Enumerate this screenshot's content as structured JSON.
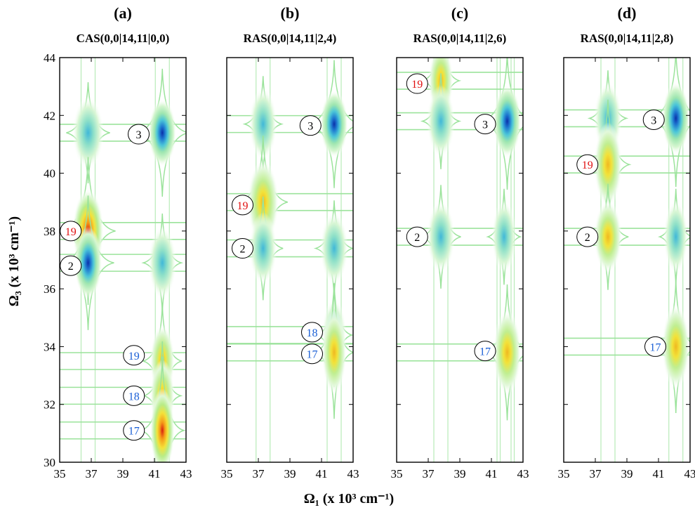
{
  "chart_data": {
    "type": "heatmap",
    "xlabel": "Ω₁ (x 10³ cm⁻¹)",
    "ylabel": "Ω₃ (x 10³ cm⁻¹)",
    "xlim": [
      35,
      43
    ],
    "ylim": [
      30,
      44
    ],
    "xticks": [
      "35",
      "37",
      "39",
      "41",
      "43"
    ],
    "yticks": [
      "30",
      "32",
      "34",
      "36",
      "38",
      "40",
      "42",
      "44"
    ],
    "grid": false,
    "panels": [
      {
        "letter": "(a)",
        "title": "CAS(0,0|14,11|0,0)",
        "peaks": [
          {
            "x": 41.5,
            "y": 41.4,
            "amp": 1.0,
            "sx": 0.25,
            "sy": 0.28
          },
          {
            "x": 36.8,
            "y": 41.4,
            "amp": 0.3,
            "sx": 0.28,
            "sy": 0.3
          },
          {
            "x": 36.8,
            "y": 38.0,
            "amp": 0.8,
            "sx": 0.28,
            "sy": 0.35
          },
          {
            "x": 36.8,
            "y": 36.9,
            "amp": 0.95,
            "sx": 0.25,
            "sy": 0.3
          },
          {
            "x": 41.5,
            "y": 36.9,
            "amp": 0.25,
            "sx": 0.25,
            "sy": 0.3
          },
          {
            "x": 41.5,
            "y": 33.5,
            "amp": 0.55,
            "sx": 0.22,
            "sy": 0.3
          },
          {
            "x": 41.5,
            "y": 32.3,
            "amp": 0.45,
            "sx": 0.22,
            "sy": 0.3
          },
          {
            "x": 41.5,
            "y": 31.1,
            "amp": 0.8,
            "sx": 0.22,
            "sy": 0.35
          }
        ],
        "labels": [
          {
            "text": "3",
            "x": 40.0,
            "y": 41.35,
            "color": "black"
          },
          {
            "text": "19",
            "x": 35.7,
            "y": 38.0,
            "color": "red"
          },
          {
            "text": "2",
            "x": 35.7,
            "y": 36.8,
            "color": "black"
          },
          {
            "text": "19",
            "x": 39.7,
            "y": 33.7,
            "color": "blue"
          },
          {
            "text": "18",
            "x": 39.7,
            "y": 32.3,
            "color": "blue"
          },
          {
            "text": "17",
            "x": 39.7,
            "y": 31.1,
            "color": "blue"
          }
        ]
      },
      {
        "letter": "(b)",
        "title": "RAS(0,0|14,11|2,4)",
        "peaks": [
          {
            "x": 41.8,
            "y": 41.7,
            "amp": 1.0,
            "sx": 0.25,
            "sy": 0.28
          },
          {
            "x": 37.3,
            "y": 41.7,
            "amp": 0.2,
            "sx": 0.25,
            "sy": 0.3
          },
          {
            "x": 37.3,
            "y": 39.0,
            "amp": 0.55,
            "sx": 0.28,
            "sy": 0.35
          },
          {
            "x": 37.3,
            "y": 37.4,
            "amp": 0.35,
            "sx": 0.25,
            "sy": 0.3
          },
          {
            "x": 41.8,
            "y": 37.4,
            "amp": 0.2,
            "sx": 0.25,
            "sy": 0.3
          },
          {
            "x": 41.8,
            "y": 34.4,
            "amp": 0.35,
            "sx": 0.22,
            "sy": 0.3
          },
          {
            "x": 41.8,
            "y": 33.8,
            "amp": 0.55,
            "sx": 0.22,
            "sy": 0.35
          }
        ],
        "labels": [
          {
            "text": "3",
            "x": 40.3,
            "y": 41.65,
            "color": "black"
          },
          {
            "text": "19",
            "x": 36.0,
            "y": 38.9,
            "color": "red"
          },
          {
            "text": "2",
            "x": 36.0,
            "y": 37.4,
            "color": "black"
          },
          {
            "text": "18",
            "x": 40.4,
            "y": 34.5,
            "color": "blue"
          },
          {
            "text": "17",
            "x": 40.4,
            "y": 33.75,
            "color": "blue"
          }
        ]
      },
      {
        "letter": "(c)",
        "title": "RAS(0,0|14,11|2,6)",
        "peaks": [
          {
            "x": 37.8,
            "y": 43.2,
            "amp": 0.45,
            "sx": 0.22,
            "sy": 0.3
          },
          {
            "x": 42.0,
            "y": 41.8,
            "amp": 1.0,
            "sx": 0.25,
            "sy": 0.3
          },
          {
            "x": 37.8,
            "y": 41.8,
            "amp": 0.2,
            "sx": 0.25,
            "sy": 0.3
          },
          {
            "x": 37.8,
            "y": 37.8,
            "amp": 0.35,
            "sx": 0.25,
            "sy": 0.3
          },
          {
            "x": 41.8,
            "y": 37.8,
            "amp": 0.2,
            "sx": 0.22,
            "sy": 0.3
          },
          {
            "x": 42.0,
            "y": 33.8,
            "amp": 0.6,
            "sx": 0.25,
            "sy": 0.35
          }
        ],
        "labels": [
          {
            "text": "19",
            "x": 36.3,
            "y": 43.1,
            "color": "red"
          },
          {
            "text": "3",
            "x": 40.6,
            "y": 41.7,
            "color": "black"
          },
          {
            "text": "2",
            "x": 36.3,
            "y": 37.8,
            "color": "black"
          },
          {
            "text": "17",
            "x": 40.6,
            "y": 33.85,
            "color": "blue"
          }
        ]
      },
      {
        "letter": "(d)",
        "title": "RAS(0,0|14,11|2,8)",
        "peaks": [
          {
            "x": 42.1,
            "y": 41.9,
            "amp": 1.0,
            "sx": 0.25,
            "sy": 0.3
          },
          {
            "x": 37.8,
            "y": 41.9,
            "amp": 0.2,
            "sx": 0.25,
            "sy": 0.3
          },
          {
            "x": 37.8,
            "y": 40.3,
            "amp": 0.5,
            "sx": 0.25,
            "sy": 0.35
          },
          {
            "x": 37.8,
            "y": 37.8,
            "amp": 0.4,
            "sx": 0.25,
            "sy": 0.3
          },
          {
            "x": 42.1,
            "y": 37.8,
            "amp": 0.2,
            "sx": 0.22,
            "sy": 0.3
          },
          {
            "x": 42.1,
            "y": 34.0,
            "amp": 0.55,
            "sx": 0.25,
            "sy": 0.35
          }
        ],
        "labels": [
          {
            "text": "3",
            "x": 40.7,
            "y": 41.85,
            "color": "black"
          },
          {
            "text": "19",
            "x": 36.5,
            "y": 40.3,
            "color": "red"
          },
          {
            "text": "2",
            "x": 36.5,
            "y": 37.8,
            "color": "black"
          },
          {
            "text": "17",
            "x": 40.8,
            "y": 34.0,
            "color": "blue"
          }
        ]
      }
    ]
  },
  "colors": {
    "contour": "#9be39b",
    "axes": "#000000",
    "label_black": "#000000",
    "label_red": "#e01010",
    "label_blue": "#1a5fd6"
  }
}
